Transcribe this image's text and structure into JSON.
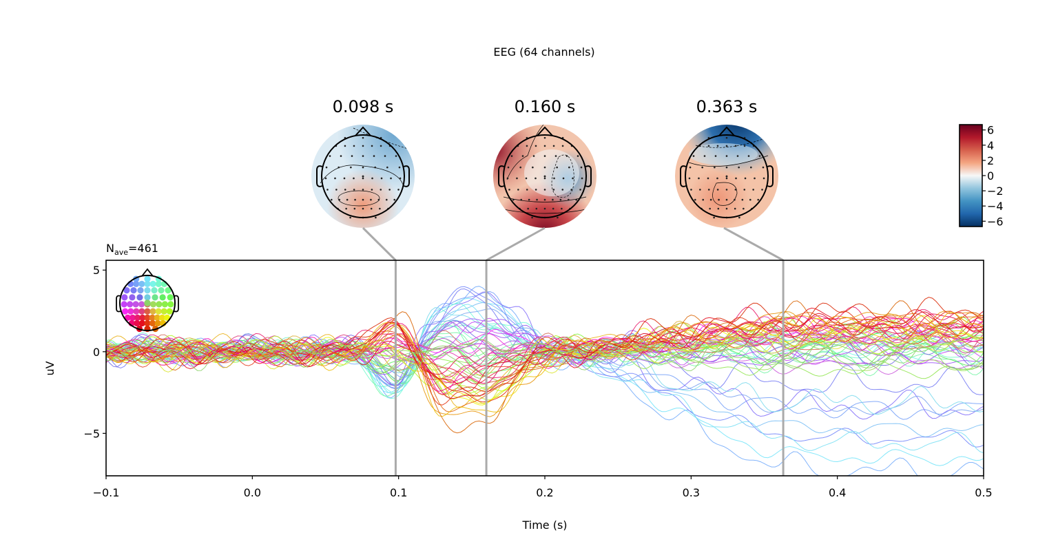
{
  "figure": {
    "suptitle": "EEG (64 channels)",
    "nave_prefix": "N",
    "nave_sub": "ave",
    "nave_value": "=461"
  },
  "chart_data": {
    "type": "line",
    "title": "EEG (64 channels)",
    "xlabel": "Time (s)",
    "ylabel": "uV",
    "xlim": [
      -0.1,
      0.5
    ],
    "ylim": [
      -7.6,
      5.6
    ],
    "xticks": [
      -0.1,
      0.0,
      0.1,
      0.2,
      0.3,
      0.4,
      0.5
    ],
    "xtick_labels": [
      "−0.1",
      "0.0",
      "0.1",
      "0.2",
      "0.3",
      "0.4",
      "0.5"
    ],
    "yticks": [
      5,
      0,
      -5
    ],
    "ytick_labels": [
      "5",
      "0",
      "−5"
    ],
    "grid": false,
    "n_channels": 64,
    "n_ave": 461,
    "marker_times": [
      0.098,
      0.16,
      0.363
    ],
    "topomaps": [
      {
        "time": 0.098,
        "label": "0.098 s",
        "pattern": "posterior positive, frontal negative"
      },
      {
        "time": 0.16,
        "label": "0.160 s",
        "pattern": "right-central negative, left and occipital positive"
      },
      {
        "time": 0.363,
        "label": "0.363 s",
        "pattern": "frontal negative, central-parietal positive"
      }
    ],
    "colorbar": {
      "cmap": "RdBu_r",
      "range": [
        -6.7,
        6.7
      ],
      "ticks": [
        6,
        4,
        2,
        0,
        -2,
        -4,
        -6
      ],
      "tick_labels": [
        "6",
        "4",
        "2",
        "0",
        "−2",
        "−4",
        "−6"
      ],
      "unit": "uV"
    },
    "series_summary": [
      {
        "name": "posterior-violet channels",
        "peak_times": [
          0.098,
          0.36
        ],
        "peak_values": [
          3.0,
          2.0
        ]
      },
      {
        "name": "right-frontal green/dark-red channels",
        "peak_times": [
          0.16
        ],
        "peak_values": [
          4.9
        ]
      },
      {
        "name": "left-frontal yellow-green channels",
        "end_value_at_0.5": -6.5,
        "min_near_0.363": -7.0
      },
      {
        "name": "midline magenta channels",
        "trough_time": 0.16,
        "trough_value": -3.4
      }
    ],
    "legend": "channel-location head inset, top-left"
  }
}
